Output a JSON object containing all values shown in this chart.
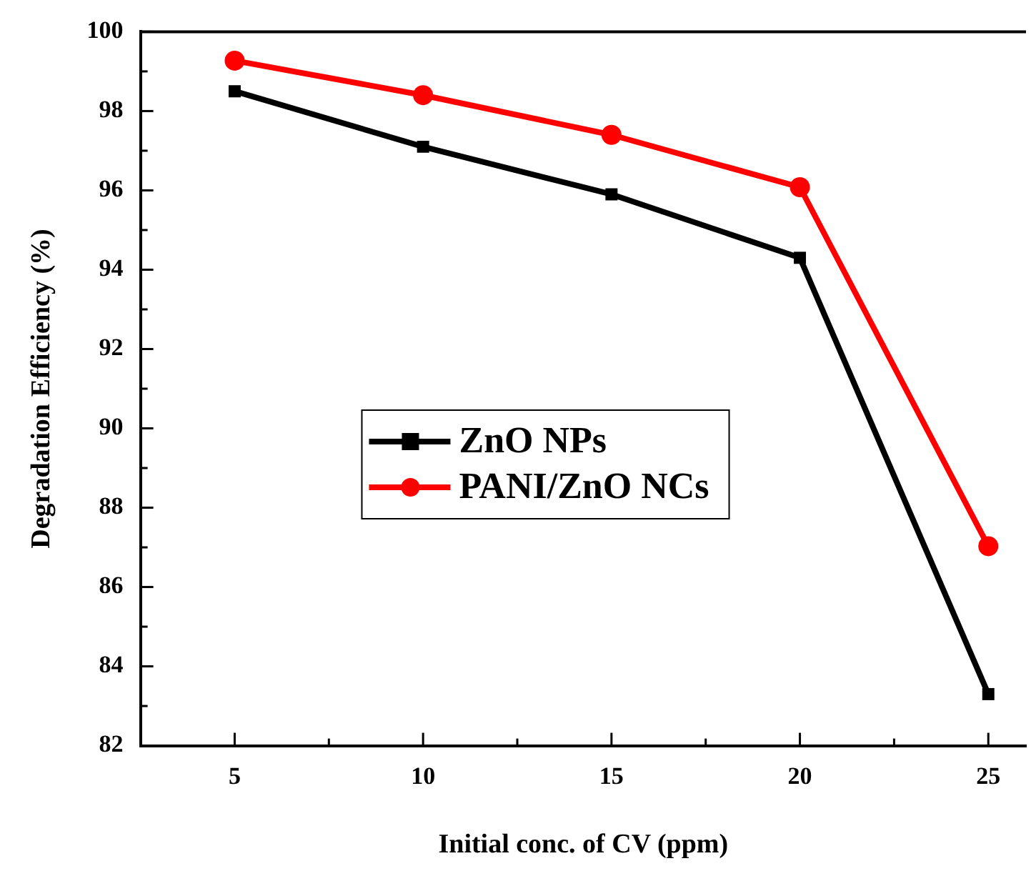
{
  "chart_data": {
    "type": "line",
    "xlabel": "Initial conc. of CV (ppm)",
    "ylabel": "Degradation Efficiency (%)",
    "x": [
      5,
      10,
      15,
      20,
      25
    ],
    "series": [
      {
        "name": "ZnO NPs",
        "color": "#000000",
        "marker": "square",
        "values": [
          98.5,
          97.1,
          95.9,
          94.3,
          83.3
        ]
      },
      {
        "name": "PANI/ZnO NCs",
        "color": "#ff0000",
        "marker": "circle",
        "values": [
          99.27,
          98.4,
          97.4,
          96.08,
          87.03
        ]
      }
    ],
    "xlim": [
      2.5,
      26
    ],
    "xticks": [
      {
        "value": 2.5,
        "label": null
      },
      5,
      {
        "value": 7.5,
        "label": null
      },
      10,
      {
        "value": 12.5,
        "label": null
      },
      15,
      {
        "value": 17.5,
        "label": null
      },
      20,
      {
        "value": 22.5,
        "label": null
      },
      25
    ],
    "ylim": [
      82,
      100
    ],
    "yticks": [
      82,
      {
        "value": 83,
        "label": null
      },
      84,
      {
        "value": 85,
        "label": null
      },
      86,
      {
        "value": 87,
        "label": null
      },
      88,
      {
        "value": 89,
        "label": null
      },
      90,
      {
        "value": 91,
        "label": null
      },
      92,
      {
        "value": 93,
        "label": null
      },
      94,
      {
        "value": 95,
        "label": null
      },
      96,
      {
        "value": 97,
        "label": null
      },
      98,
      {
        "value": 99,
        "label": null
      },
      100
    ],
    "grid": false,
    "legend": "left",
    "line_style": "solid"
  }
}
